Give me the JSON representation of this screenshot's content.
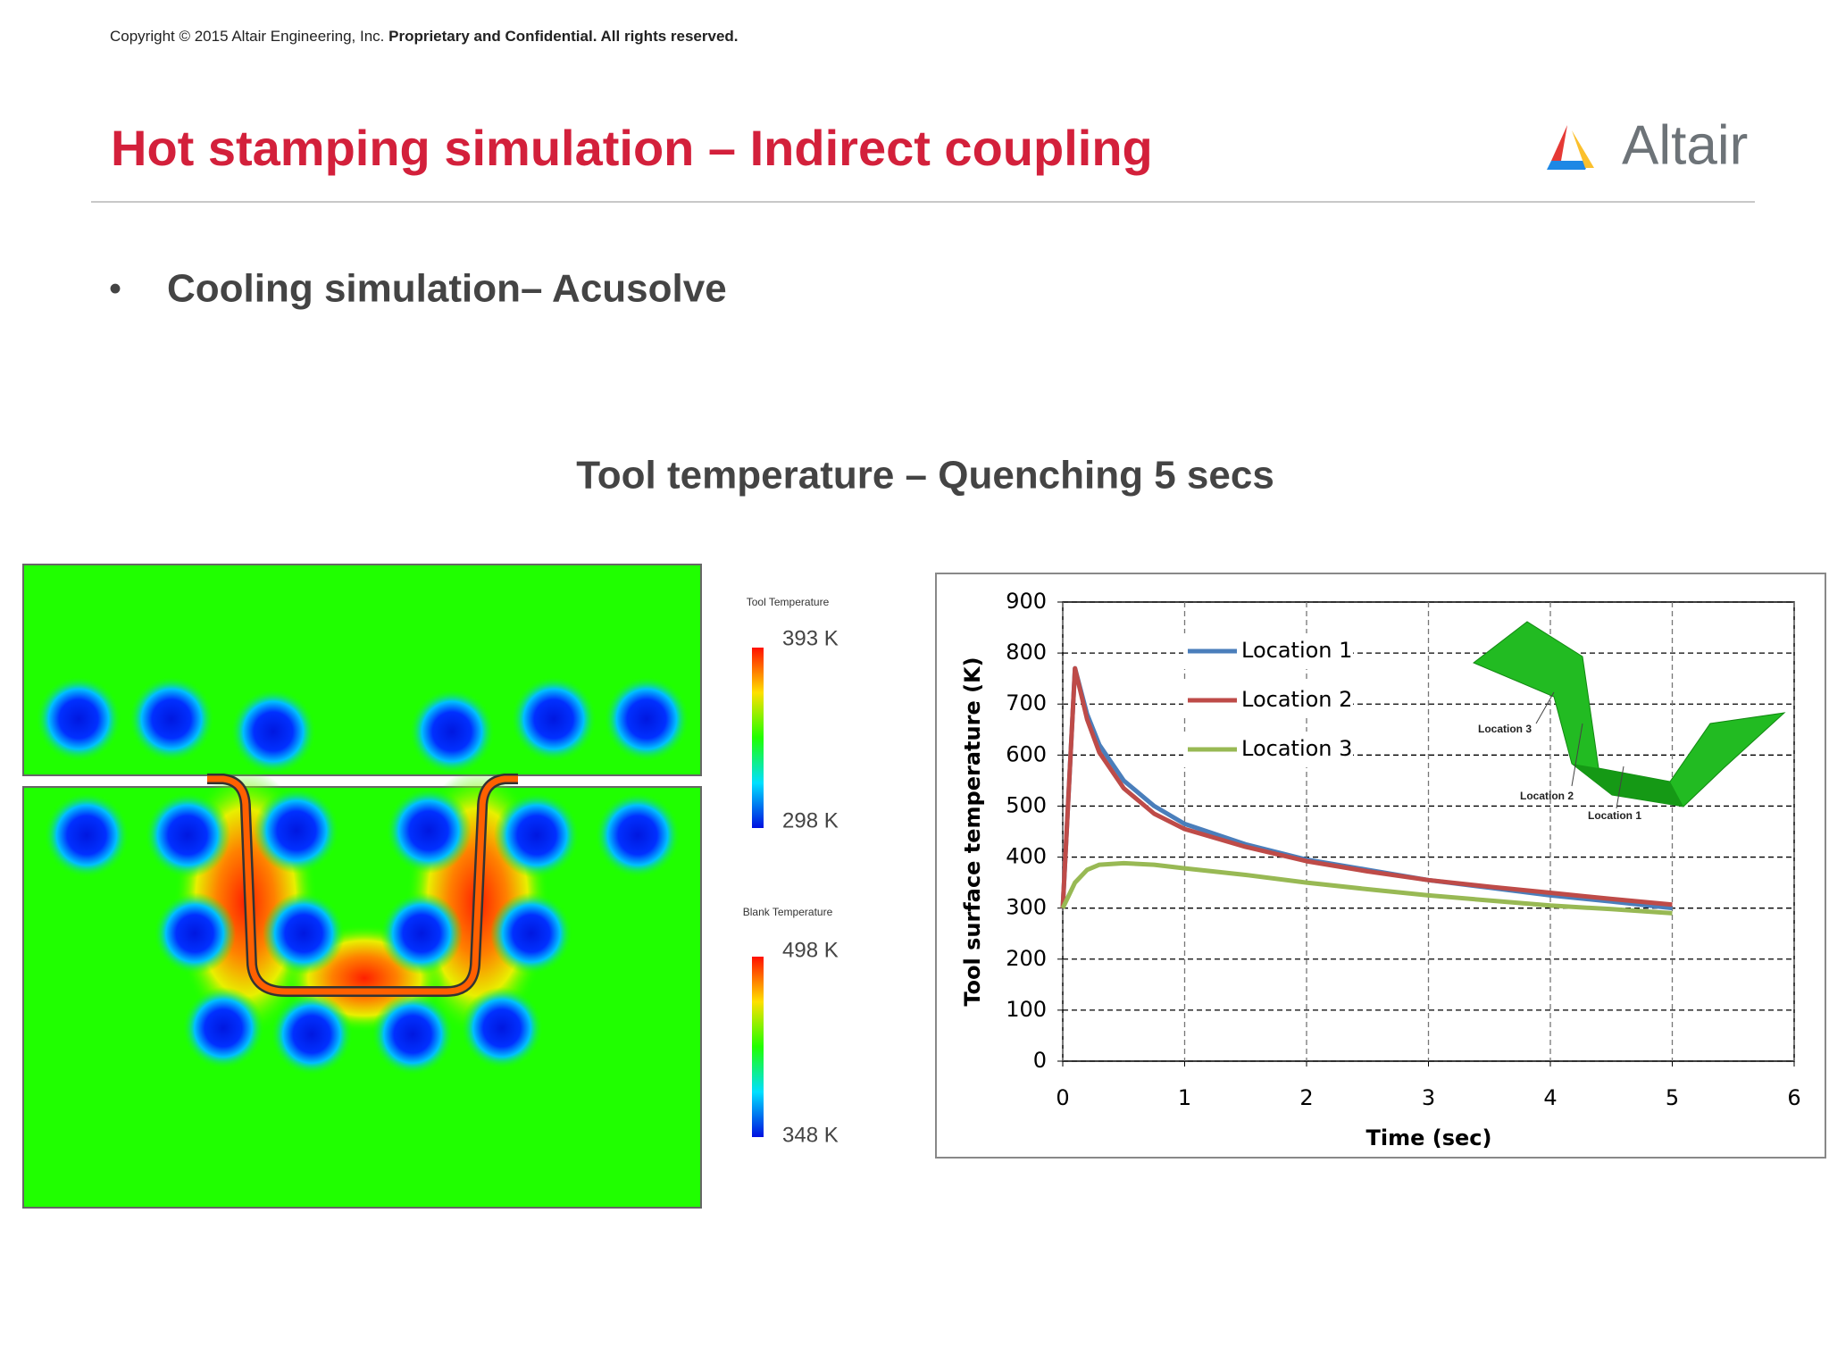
{
  "header": {
    "copyright": "Copyright © 2015 Altair Engineering, Inc.",
    "copyright_bold": "Proprietary and Confidential. All rights reserved.",
    "title": "Hot stamping simulation – Indirect coupling",
    "logo": "Altair"
  },
  "bullet": "Cooling simulation– Acusolve",
  "section_title": "Tool temperature – Quenching 5 secs",
  "figure": {
    "tool_legend_title": "Tool Temperature",
    "tool_max": "393 K",
    "tool_min": "298 K",
    "blank_legend_title": "Blank Temperature",
    "blank_max": "498 K",
    "blank_min": "348 K"
  },
  "inset": {
    "labels": [
      "Location 3",
      "Location 2",
      "Location 1"
    ]
  },
  "chart_data": {
    "type": "line",
    "x_label": "Time (sec)",
    "y_label": "Tool surface temperature (K)",
    "x": [
      0,
      0.1,
      0.2,
      0.3,
      0.5,
      0.75,
      1,
      1.5,
      2,
      2.5,
      3,
      3.5,
      4,
      4.5,
      5
    ],
    "series": [
      {
        "name": "Location 1",
        "color": "#4a7ebb",
        "values": [
          300,
          770,
          680,
          620,
          550,
          500,
          465,
          425,
          395,
          375,
          355,
          340,
          325,
          313,
          300
        ]
      },
      {
        "name": "Location 2",
        "color": "#be4b48",
        "values": [
          300,
          770,
          670,
          605,
          535,
          485,
          455,
          420,
          392,
          372,
          355,
          342,
          330,
          318,
          307
        ]
      },
      {
        "name": "Location 3",
        "color": "#98b954",
        "values": [
          300,
          350,
          375,
          385,
          388,
          385,
          378,
          365,
          350,
          337,
          325,
          315,
          305,
          298,
          290
        ]
      }
    ],
    "xlim": [
      0,
      6
    ],
    "ylim": [
      0,
      900
    ],
    "xticks": [
      0,
      1,
      2,
      3,
      4,
      5,
      6
    ],
    "yticks": [
      0,
      100,
      200,
      300,
      400,
      500,
      600,
      700,
      800,
      900
    ],
    "grid": true
  }
}
